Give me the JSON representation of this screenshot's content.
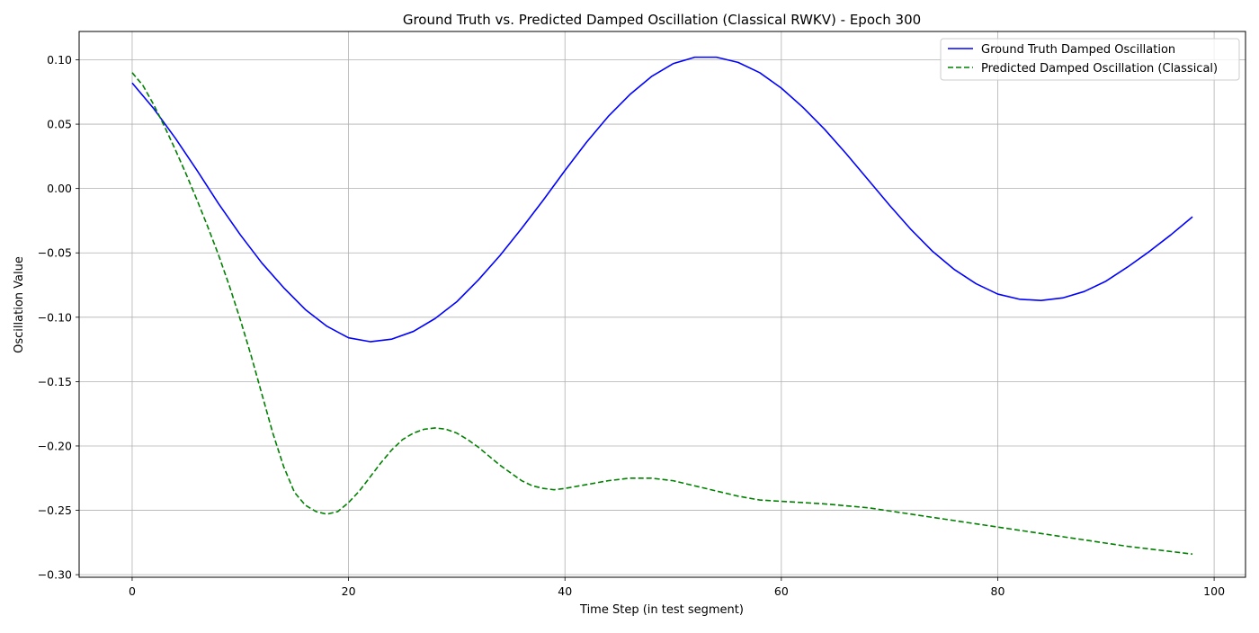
{
  "chart_data": {
    "type": "line",
    "title": "Ground Truth vs. Predicted Damped Oscillation (Classical RWKV) - Epoch 300",
    "xlabel": "Time Step (in test segment)",
    "ylabel": "Oscillation Value",
    "xlim": [
      -4.9,
      102.9
    ],
    "ylim": [
      -0.302,
      0.122
    ],
    "xticks": [
      0,
      20,
      40,
      60,
      80,
      100
    ],
    "yticks": [
      0.1,
      0.05,
      0.0,
      -0.05,
      -0.1,
      -0.15,
      -0.2,
      -0.25,
      -0.3
    ],
    "xtick_labels": [
      "0",
      "20",
      "40",
      "60",
      "80",
      "100"
    ],
    "ytick_labels": [
      "0.10",
      "0.05",
      "0.00",
      "−0.05",
      "−0.10",
      "−0.15",
      "−0.20",
      "−0.25",
      "−0.30"
    ],
    "grid": true,
    "legend_position": "top-right",
    "series": [
      {
        "name": "Ground Truth Damped Oscillation",
        "color": "#0000ff",
        "style": "solid",
        "x": [
          0,
          2,
          4,
          6,
          8,
          10,
          12,
          14,
          16,
          18,
          20,
          22,
          24,
          26,
          28,
          30,
          32,
          34,
          36,
          38,
          40,
          42,
          44,
          46,
          48,
          50,
          52,
          54,
          56,
          58,
          60,
          62,
          64,
          66,
          68,
          70,
          72,
          74,
          76,
          78,
          80,
          82,
          84,
          86,
          88,
          90,
          92,
          94,
          96,
          98
        ],
        "y": [
          0.082,
          0.062,
          0.039,
          0.014,
          -0.012,
          -0.036,
          -0.058,
          -0.077,
          -0.094,
          -0.107,
          -0.116,
          -0.119,
          -0.117,
          -0.111,
          -0.101,
          -0.088,
          -0.071,
          -0.052,
          -0.031,
          -0.009,
          0.014,
          0.036,
          0.056,
          0.073,
          0.087,
          0.097,
          0.102,
          0.102,
          0.098,
          0.09,
          0.078,
          0.063,
          0.046,
          0.027,
          0.007,
          -0.013,
          -0.032,
          -0.049,
          -0.063,
          -0.074,
          -0.082,
          -0.086,
          -0.087,
          -0.085,
          -0.08,
          -0.072,
          -0.061,
          -0.049,
          -0.036,
          -0.022
        ]
      },
      {
        "name": "Predicted Damped Oscillation (Classical)",
        "color": "#008000",
        "style": "dashed",
        "x": [
          0,
          1,
          2,
          3,
          4,
          5,
          6,
          7,
          8,
          9,
          10,
          11,
          12,
          13,
          14,
          15,
          16,
          17,
          18,
          19,
          20,
          21,
          22,
          23,
          24,
          25,
          26,
          27,
          28,
          29,
          30,
          31,
          32,
          33,
          34,
          35,
          36,
          37,
          38,
          39,
          40,
          42,
          44,
          46,
          47,
          48,
          50,
          52,
          54,
          56,
          58,
          60,
          64,
          68,
          72,
          76,
          80,
          84,
          88,
          92,
          96,
          98
        ],
        "y": [
          0.09,
          0.08,
          0.065,
          0.048,
          0.03,
          0.011,
          -0.009,
          -0.03,
          -0.052,
          -0.076,
          -0.102,
          -0.13,
          -0.16,
          -0.19,
          -0.216,
          -0.236,
          -0.246,
          -0.251,
          -0.253,
          -0.251,
          -0.244,
          -0.235,
          -0.224,
          -0.213,
          -0.203,
          -0.195,
          -0.19,
          -0.187,
          -0.186,
          -0.187,
          -0.19,
          -0.195,
          -0.201,
          -0.208,
          -0.215,
          -0.221,
          -0.227,
          -0.231,
          -0.233,
          -0.234,
          -0.233,
          -0.23,
          -0.227,
          -0.225,
          -0.225,
          -0.225,
          -0.227,
          -0.231,
          -0.235,
          -0.239,
          -0.242,
          -0.243,
          -0.245,
          -0.248,
          -0.253,
          -0.258,
          -0.263,
          -0.268,
          -0.273,
          -0.278,
          -0.282,
          -0.284
        ]
      }
    ]
  }
}
